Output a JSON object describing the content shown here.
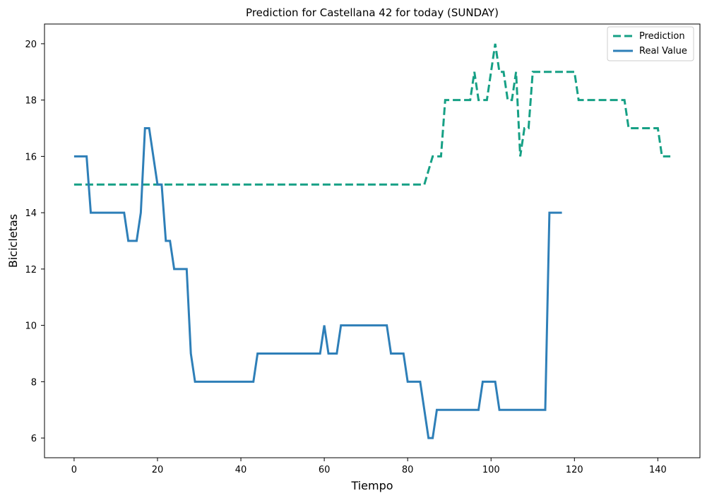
{
  "chart_data": {
    "type": "line",
    "title": "Prediction for Castellana 42 for today (SUNDAY)",
    "xlabel": "Tiempo",
    "ylabel": "Bicicletas",
    "xlim": [
      -7.1,
      150.1
    ],
    "ylim": [
      5.3,
      20.7
    ],
    "xticks": [
      0,
      20,
      40,
      60,
      80,
      100,
      120,
      140
    ],
    "yticks": [
      6,
      8,
      10,
      12,
      14,
      16,
      18,
      20
    ],
    "grid": false,
    "legend_position": "top-right",
    "series": [
      {
        "name": "Prediction",
        "color": "#16a085",
        "dash": "dashed",
        "x": [
          0,
          83,
          84,
          86,
          88,
          89,
          94,
          95,
          96,
          97,
          99,
          100,
          101,
          102,
          103,
          104,
          105,
          106,
          107,
          108,
          109,
          110,
          111,
          119,
          120,
          121,
          131,
          132,
          133,
          139,
          140,
          141,
          143
        ],
        "y": [
          15,
          15,
          15,
          16,
          16,
          18,
          18,
          18,
          19,
          18,
          18,
          19,
          20,
          19,
          19,
          18,
          18,
          19,
          16,
          17,
          17,
          19,
          19,
          19,
          19,
          18,
          18,
          18,
          17,
          17,
          17,
          16,
          16
        ]
      },
      {
        "name": "Real Value",
        "color": "#2e7fb8",
        "dash": "solid",
        "x": [
          0,
          3,
          4,
          12,
          13,
          15,
          16,
          17,
          18,
          20,
          21,
          22,
          23,
          24,
          27,
          28,
          29,
          43,
          44,
          59,
          60,
          61,
          63,
          64,
          75,
          76,
          79,
          80,
          83,
          85,
          86,
          87,
          97,
          98,
          101,
          102,
          113,
          114,
          117
        ],
        "y": [
          16,
          16,
          14,
          14,
          13,
          13,
          14,
          17,
          17,
          15,
          15,
          13,
          13,
          12,
          12,
          9,
          8,
          8,
          9,
          9,
          10,
          9,
          9,
          10,
          10,
          9,
          9,
          8,
          8,
          6,
          6,
          7,
          7,
          8,
          8,
          7,
          7,
          14,
          14
        ]
      }
    ]
  }
}
